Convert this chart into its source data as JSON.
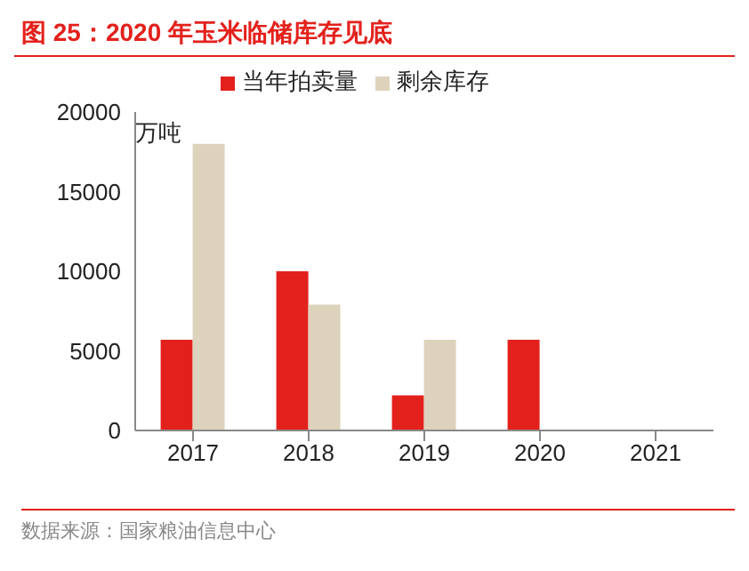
{
  "chart_data": {
    "type": "bar",
    "title": "图 25：2020 年玉米临储库存见底",
    "ylabel": "万吨",
    "categories": [
      "2017",
      "2018",
      "2019",
      "2020",
      "2021"
    ],
    "series": [
      {
        "name": "当年拍卖量",
        "color": "#e3211c",
        "values": [
          5700,
          10000,
          2200,
          5700,
          0
        ]
      },
      {
        "name": "剩余库存",
        "color": "#ddd3bc",
        "values": [
          18000,
          7900,
          5700,
          0,
          0
        ]
      }
    ],
    "ylim": [
      0,
      20000
    ],
    "yticks": [
      0,
      5000,
      10000,
      15000,
      20000
    ],
    "grid": false,
    "legend": "top",
    "annotations": [
      "数据来源：国家粮油信息中心"
    ]
  }
}
